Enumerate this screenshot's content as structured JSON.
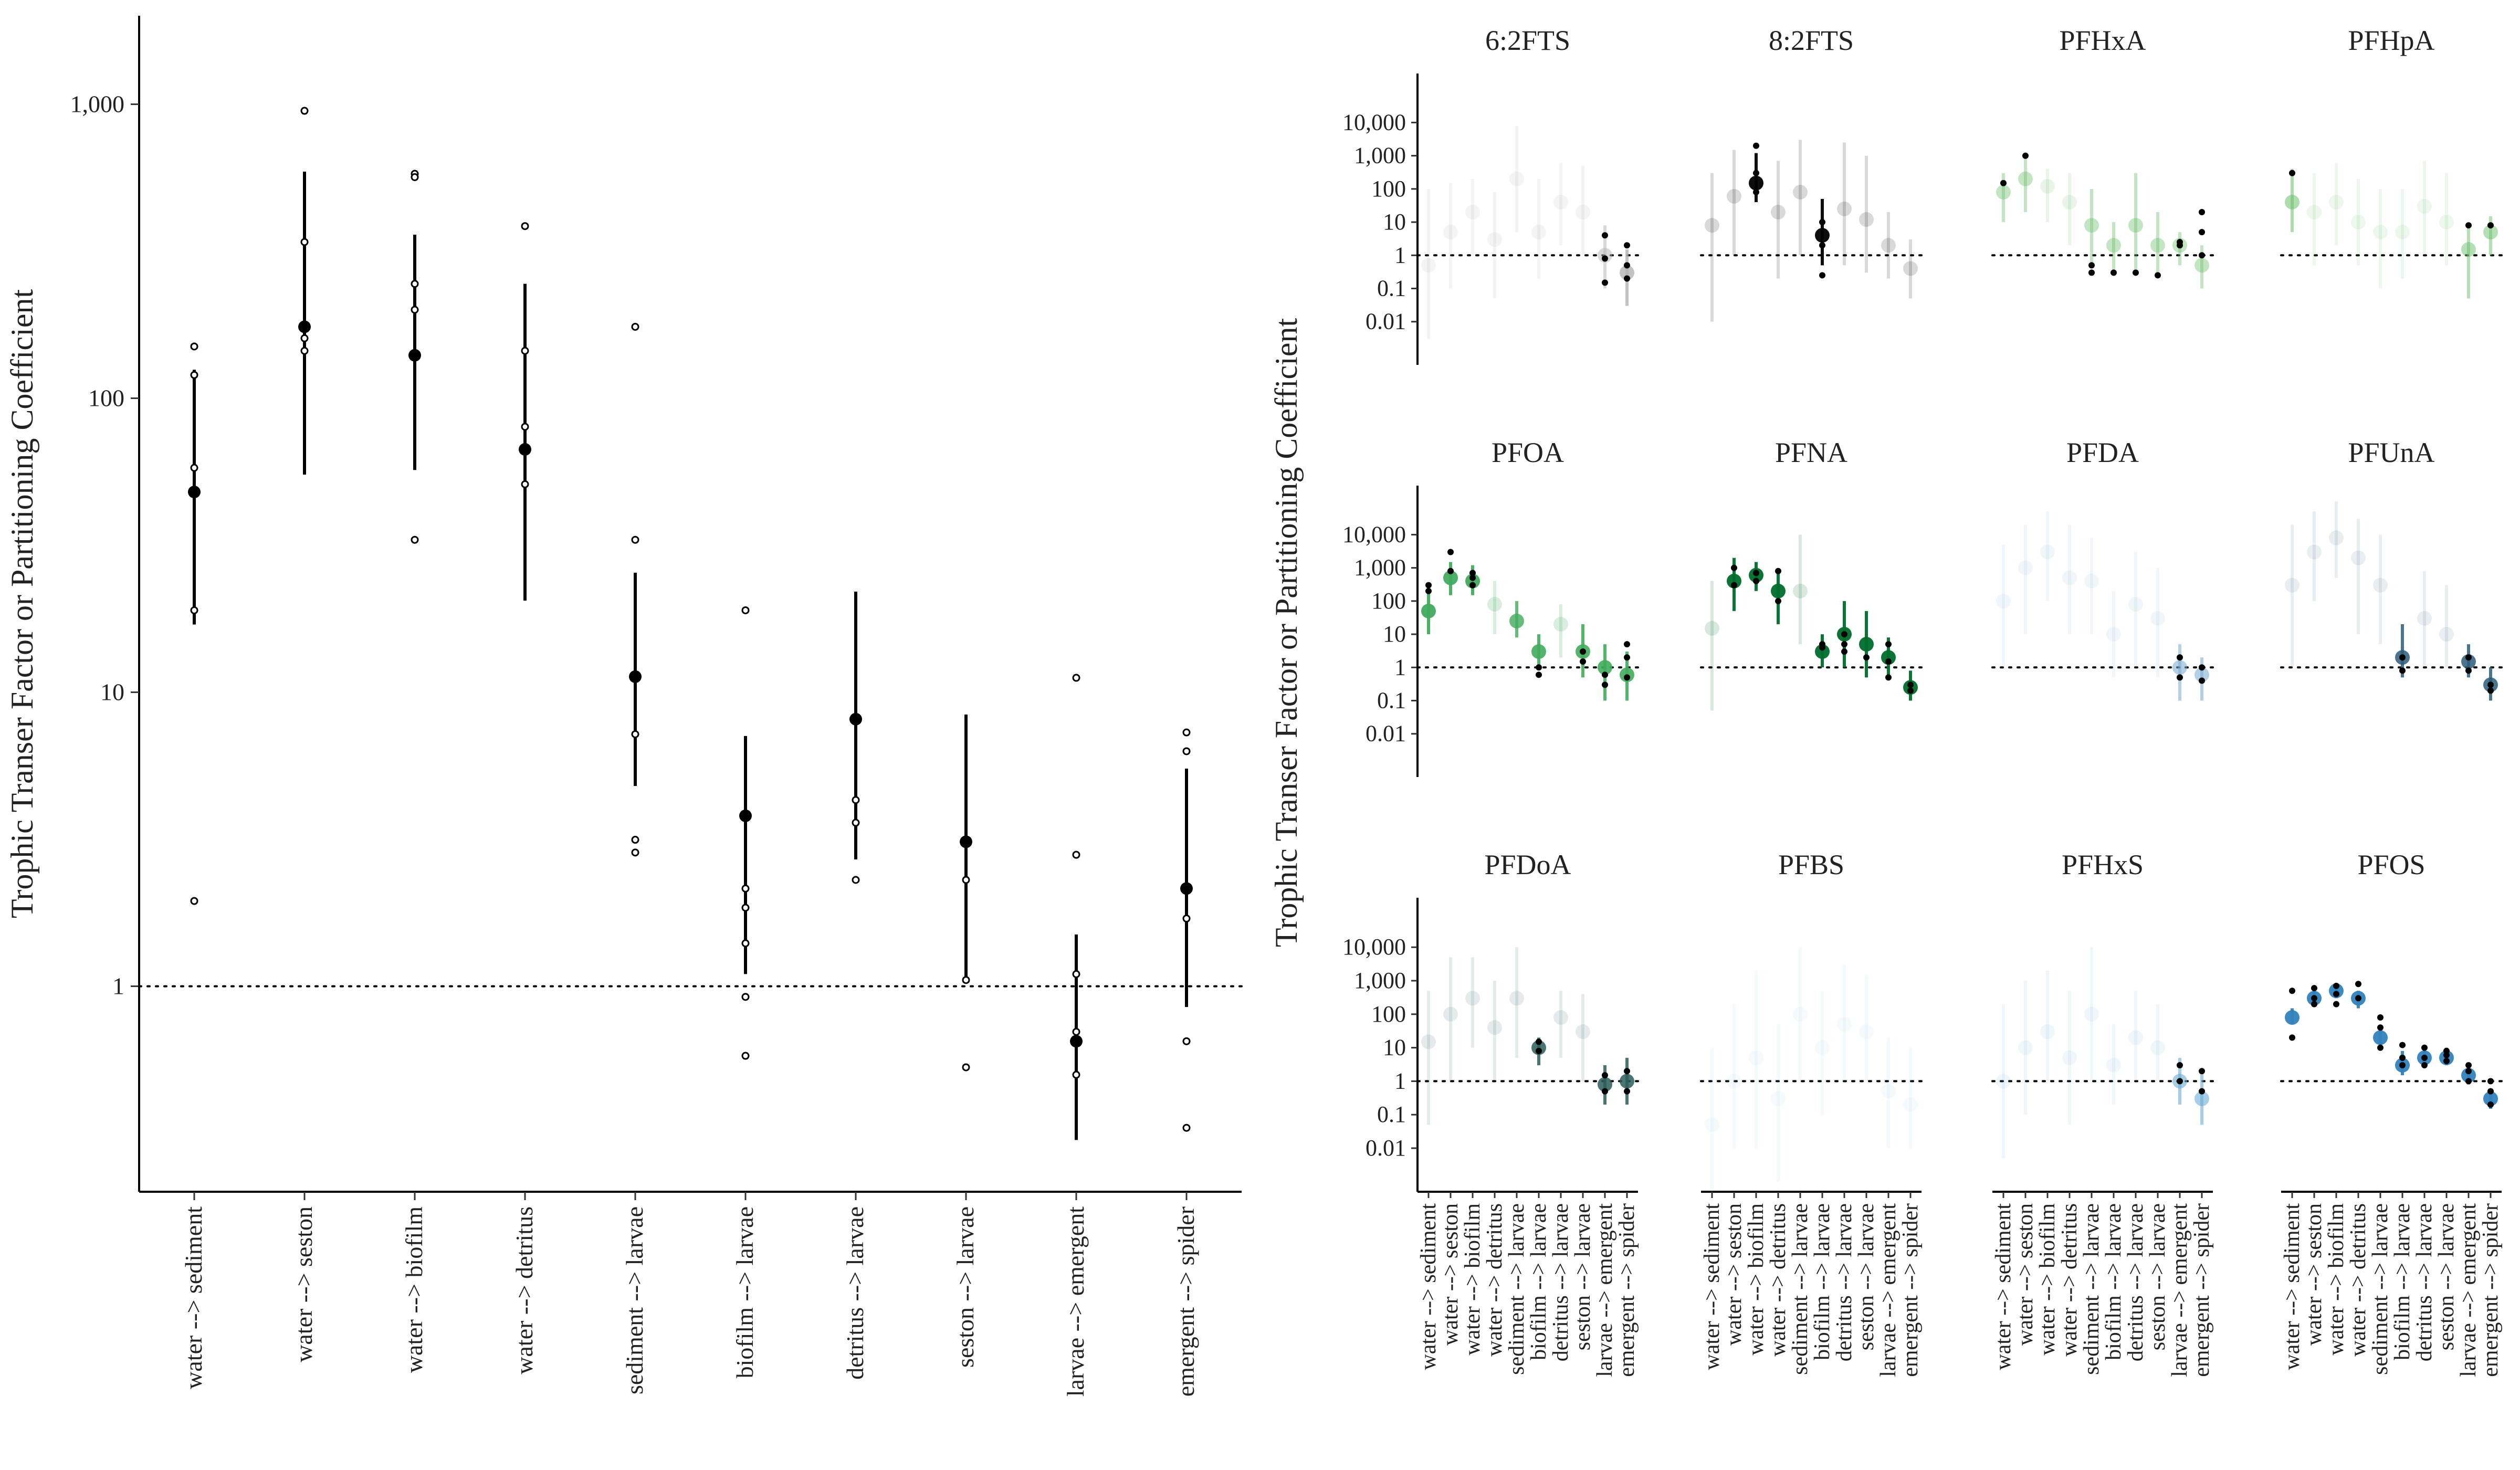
{
  "figure": {
    "ylabel": "Trophic Transer Factor or Partitioning Coefficient",
    "categories": [
      "water --> sediment",
      "water --> seston",
      "water --> biofilm",
      "water --> detritus",
      "sediment --> larvae",
      "biofilm --> larvae",
      "detritus --> larvae",
      "seston --> larvae",
      "larvae --> emergent",
      "emergent --> spider"
    ]
  },
  "chart_data": [
    {
      "type": "scatter",
      "panel": "pooled",
      "ylabel": "Trophic Transer Factor or Partitioning Coefficient",
      "yscale": "log",
      "ylim": [
        0.2,
        2000
      ],
      "yticks": [
        1,
        10,
        100,
        1000
      ],
      "ytick_labels": [
        "1",
        "10",
        "100",
        "1,000"
      ],
      "reference_line": 1,
      "grid": false,
      "categories": [
        "water --> sediment",
        "water --> seston",
        "water --> biofilm",
        "water --> detritus",
        "sediment --> larvae",
        "biofilm --> larvae",
        "detritus --> larvae",
        "seston --> larvae",
        "larvae --> emergent",
        "emergent --> spider"
      ],
      "mean": [
        48,
        175,
        140,
        67,
        11.3,
        3.8,
        8.1,
        3.1,
        0.65,
        2.15
      ],
      "lower": [
        17,
        55,
        57,
        20.5,
        4.8,
        1.1,
        2.7,
        1.05,
        0.3,
        0.85
      ],
      "upper": [
        125,
        590,
        360,
        245,
        25.5,
        7.1,
        22,
        8.4,
        1.5,
        5.5
      ],
      "observations": [
        [
          150,
          120,
          58,
          19,
          1.95
        ],
        [
          950,
          340,
          160,
          145
        ],
        [
          580,
          565,
          245,
          200,
          33
        ],
        [
          385,
          145,
          80,
          51
        ],
        [
          175,
          33,
          7.2,
          3.15,
          2.85
        ],
        [
          19,
          2.15,
          1.85,
          1.4,
          0.92,
          0.58
        ],
        [
          4.3,
          3.6,
          2.3
        ],
        [
          2.3,
          1.05,
          0.53
        ],
        [
          11.2,
          2.8,
          1.1,
          0.7,
          0.5
        ],
        [
          7.3,
          6.3,
          1.7,
          0.65,
          0.33
        ]
      ],
      "colors": {
        "points": "#000000",
        "line": "#000000"
      }
    },
    {
      "type": "scatter",
      "panel": "by-compound",
      "ylabel": "Trophic Transer Factor or Partitioning Coefficient",
      "yscale": "log",
      "ylim": [
        0.0005,
        300000
      ],
      "yticks": [
        0.01,
        0.1,
        1,
        10,
        100,
        1000,
        10000
      ],
      "ytick_labels": [
        "0.01",
        "0.1",
        "1",
        "10",
        "100",
        "1,000",
        "10,000"
      ],
      "reference_line": 1,
      "categories": [
        "water --> sediment",
        "water --> seston",
        "water --> biofilm",
        "water --> detritus",
        "sediment --> larvae",
        "biofilm --> larvae",
        "detritus --> larvae",
        "seston --> larvae",
        "larvae --> emergent",
        "emergent --> spider"
      ],
      "series": [
        {
          "name": "6:2FTS",
          "color": "#b3b3b3",
          "mean": [
            0.5,
            5,
            20,
            3,
            200,
            5,
            40,
            20,
            1,
            0.3
          ],
          "lower": [
            0.003,
            0.1,
            1,
            0.05,
            5,
            0.2,
            2,
            1,
            0.1,
            0.03
          ],
          "upper": [
            100,
            150,
            200,
            80,
            8000,
            200,
            600,
            500,
            8,
            1.5
          ],
          "alpha": [
            0.15,
            0.15,
            0.15,
            0.15,
            0.15,
            0.15,
            0.15,
            0.15,
            0.5,
            0.8
          ],
          "obs": [
            [],
            [],
            [],
            [],
            [],
            [],
            [],
            [],
            [
              0.15,
              0.8,
              4
            ],
            [
              0.2,
              0.5,
              2
            ]
          ]
        },
        {
          "name": "8:2FTS",
          "color": "#000000",
          "mean": [
            8,
            60,
            150,
            20,
            80,
            4,
            25,
            12,
            2,
            0.4
          ],
          "lower": [
            0.01,
            1,
            40,
            0.2,
            1,
            0.5,
            0.5,
            0.3,
            0.2,
            0.05
          ],
          "upper": [
            300,
            1500,
            1200,
            700,
            3000,
            50,
            2500,
            1000,
            20,
            3
          ],
          "alpha": [
            0.15,
            0.15,
            0.95,
            0.15,
            0.15,
            0.95,
            0.15,
            0.15,
            0.15,
            0.15
          ],
          "obs": [
            [],
            [],
            [
              2000,
              300,
              80
            ],
            [],
            [],
            [
              0.25,
              2,
              10
            ],
            [],
            [],
            [],
            []
          ]
        },
        {
          "name": "PFHxA",
          "color": "#6bbf6b",
          "mean": [
            80,
            200,
            120,
            40,
            8,
            2,
            8,
            2,
            2,
            0.5
          ],
          "lower": [
            10,
            20,
            10,
            2,
            0.5,
            0.3,
            0.3,
            0.3,
            0.5,
            0.1
          ],
          "upper": [
            300,
            1000,
            400,
            300,
            100,
            10,
            300,
            20,
            5,
            2
          ],
          "alpha": [
            0.4,
            0.4,
            0.15,
            0.15,
            0.4,
            0.4,
            0.4,
            0.4,
            0.4,
            0.4
          ],
          "obs": [
            [
              150
            ],
            [
              1000
            ],
            [],
            [],
            [
              0.5,
              0.3
            ],
            [
              0.3
            ],
            [
              0.3
            ],
            [
              0.25
            ],
            [
              2,
              2.5
            ],
            [
              5,
              20,
              1
            ]
          ]
        },
        {
          "name": "PFHpA",
          "color": "#6bbf6b",
          "mean": [
            40,
            20,
            40,
            10,
            5,
            5,
            30,
            10,
            1.5,
            5
          ],
          "lower": [
            5,
            0.5,
            2,
            0.5,
            0.1,
            0.2,
            1,
            0.5,
            0.05,
            1
          ],
          "upper": [
            400,
            300,
            600,
            200,
            100,
            100,
            700,
            300,
            8,
            15
          ],
          "alpha": [
            0.55,
            0.12,
            0.12,
            0.12,
            0.12,
            0.12,
            0.12,
            0.12,
            0.5,
            0.5
          ],
          "obs": [
            [
              300
            ],
            [],
            [],
            [],
            [],
            [],
            [],
            [],
            [
              8
            ],
            [
              8
            ]
          ]
        },
        {
          "name": "PFOA",
          "color": "#41ab5d",
          "mean": [
            50,
            500,
            400,
            80,
            25,
            3,
            20,
            3,
            1,
            0.6
          ],
          "lower": [
            10,
            150,
            150,
            10,
            8,
            1,
            2,
            0.5,
            0.1,
            0.1
          ],
          "upper": [
            200,
            1500,
            1200,
            400,
            100,
            10,
            80,
            20,
            5,
            3
          ],
          "alpha": [
            0.95,
            0.95,
            0.95,
            0.2,
            0.8,
            0.9,
            0.2,
            0.9,
            0.9,
            0.9
          ],
          "obs": [
            [
              200,
              300
            ],
            [
              3000,
              800
            ],
            [
              500,
              300,
              700
            ],
            [],
            [],
            [
              1,
              0.6
            ],
            [],
            [
              1.5,
              3
            ],
            [
              0.3,
              0.6
            ],
            [
              5,
              2,
              0.5
            ]
          ]
        },
        {
          "name": "PFNA",
          "color": "#006d2c",
          "mean": [
            15,
            400,
            600,
            200,
            200,
            3,
            10,
            5,
            2,
            0.25
          ],
          "lower": [
            0.05,
            50,
            200,
            20,
            5,
            1,
            1,
            0.5,
            0.5,
            0.1
          ],
          "upper": [
            400,
            2000,
            1500,
            800,
            10000,
            10,
            100,
            50,
            8,
            0.8
          ],
          "alpha": [
            0.15,
            0.95,
            0.95,
            0.95,
            0.15,
            0.95,
            0.95,
            0.95,
            0.95,
            0.95
          ],
          "obs": [
            [],
            [
              1000,
              300
            ],
            [
              700,
              400
            ],
            [
              800,
              100
            ],
            [],
            [
              4,
              5
            ],
            [
              5,
              3,
              10
            ],
            [
              2
            ],
            [
              5,
              1.5,
              0.5
            ],
            [
              0.3,
              0.2
            ]
          ]
        },
        {
          "name": "PFDA",
          "color": "#74a9cf",
          "mean": [
            100,
            1000,
            3000,
            500,
            400,
            10,
            80,
            30,
            1,
            0.6
          ],
          "lower": [
            1,
            10,
            100,
            10,
            10,
            0.5,
            1,
            0.5,
            0.1,
            0.1
          ],
          "upper": [
            5000,
            20000,
            50000,
            20000,
            8000,
            200,
            3000,
            1000,
            5,
            2
          ],
          "alpha": [
            0.1,
            0.1,
            0.1,
            0.1,
            0.1,
            0.1,
            0.1,
            0.1,
            0.55,
            0.55
          ],
          "obs": [
            [],
            [],
            [],
            [],
            [],
            [],
            [],
            [],
            [
              2,
              0.5
            ],
            [
              0.4,
              1
            ]
          ]
        },
        {
          "name": "PFUnA",
          "color": "#2b5d7a",
          "mean": [
            300,
            3000,
            8000,
            2000,
            300,
            2,
            30,
            10,
            1.5,
            0.3
          ],
          "lower": [
            1,
            100,
            500,
            10,
            5,
            0.5,
            1,
            1,
            0.5,
            0.1
          ],
          "upper": [
            20000,
            50000,
            100000,
            30000,
            10000,
            20,
            800,
            300,
            5,
            1
          ],
          "alpha": [
            0.1,
            0.1,
            0.1,
            0.1,
            0.1,
            0.85,
            0.1,
            0.1,
            0.85,
            0.85
          ],
          "obs": [
            [],
            [],
            [],
            [],
            [],
            [
              2,
              0.8
            ],
            [],
            [],
            [
              2,
              0.8
            ],
            [
              0.3,
              0.2
            ]
          ]
        },
        {
          "name": "PFDoA",
          "color": "#2b5d5a",
          "mean": [
            15,
            100,
            300,
            40,
            300,
            10,
            80,
            30,
            0.8,
            1
          ],
          "lower": [
            0.05,
            1,
            10,
            1,
            5,
            3,
            5,
            1,
            0.2,
            0.2
          ],
          "upper": [
            500,
            5000,
            5000,
            1000,
            10000,
            20,
            500,
            400,
            3,
            5
          ],
          "alpha": [
            0.12,
            0.12,
            0.12,
            0.12,
            0.12,
            0.85,
            0.12,
            0.12,
            0.85,
            0.85
          ],
          "obs": [
            [],
            [],
            [],
            [],
            [],
            [
              15,
              8
            ],
            [],
            [],
            [
              0.5,
              1.5
            ],
            [
              2,
              0.5
            ]
          ]
        },
        {
          "name": "PFBS",
          "color": "#9ecae1",
          "mean": [
            0.05,
            1,
            5,
            0.3,
            100,
            10,
            50,
            30,
            0.5,
            0.2
          ],
          "lower": [
            0.0005,
            0.01,
            0.01,
            0.001,
            1,
            0.1,
            1,
            1,
            0.01,
            0.01
          ],
          "upper": [
            10,
            200,
            2000,
            50,
            10000,
            500,
            3000,
            1500,
            20,
            10
          ],
          "alpha": [
            0.1,
            0.1,
            0.1,
            0.1,
            0.1,
            0.1,
            0.1,
            0.1,
            0.1,
            0.1
          ],
          "obs": [
            [],
            [],
            [],
            [],
            [],
            [],
            [],
            [],
            [],
            []
          ]
        },
        {
          "name": "PFHxS",
          "color": "#6baed6",
          "mean": [
            1,
            10,
            30,
            5,
            100,
            3,
            20,
            10,
            1,
            0.3
          ],
          "lower": [
            0.005,
            0.1,
            1,
            0.05,
            1,
            0.2,
            1,
            1,
            0.2,
            0.05
          ],
          "upper": [
            200,
            1000,
            2000,
            500,
            10000,
            50,
            500,
            200,
            5,
            2
          ],
          "alpha": [
            0.1,
            0.1,
            0.1,
            0.1,
            0.1,
            0.1,
            0.1,
            0.1,
            0.6,
            0.6
          ],
          "obs": [
            [],
            [],
            [],
            [],
            [],
            [],
            [],
            [],
            [
              3,
              1
            ],
            [
              2,
              0.5
            ]
          ]
        },
        {
          "name": "PFOS",
          "color": "#3182bd",
          "mean": [
            80,
            300,
            500,
            300,
            20,
            3,
            5,
            5,
            1.5,
            0.3
          ],
          "lower": [
            50,
            200,
            300,
            150,
            10,
            1.5,
            3,
            3,
            0.8,
            0.15
          ],
          "upper": [
            150,
            500,
            800,
            500,
            40,
            8,
            12,
            10,
            3,
            0.6
          ],
          "alpha": [
            0.95,
            0.95,
            0.95,
            0.95,
            0.95,
            0.95,
            0.95,
            0.95,
            0.95,
            0.95
          ],
          "obs": [
            [
              500,
              20
            ],
            [
              600,
              300,
              200
            ],
            [
              700,
              400,
              200
            ],
            [
              800,
              300
            ],
            [
              80,
              10,
              40
            ],
            [
              12,
              3,
              5
            ],
            [
              10,
              5,
              3
            ],
            [
              8,
              4,
              6
            ],
            [
              3,
              1,
              2
            ],
            [
              0.5,
              0.2,
              1
            ]
          ]
        }
      ]
    }
  ]
}
